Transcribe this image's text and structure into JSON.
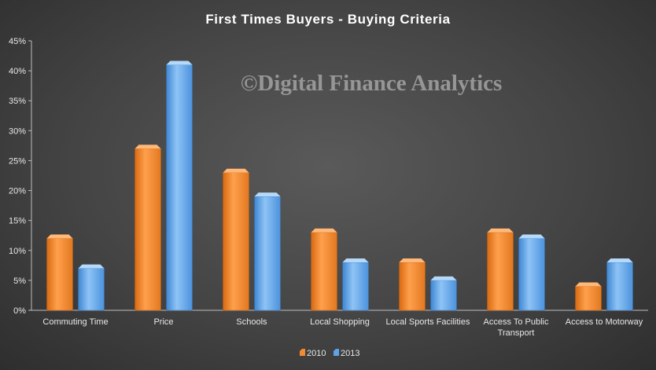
{
  "chart_data": {
    "type": "bar",
    "title": "First Times Buyers - Buying Criteria",
    "watermark": "©Digital Finance Analytics",
    "categories": [
      "Commuting Time",
      "Price",
      "Schools",
      "Local Shopping",
      "Local Sports Facilities",
      "Access To Public Transport",
      "Access to Motorway"
    ],
    "category_lines": [
      [
        "Commuting Time"
      ],
      [
        "Price"
      ],
      [
        "Schools"
      ],
      [
        "Local Shopping"
      ],
      [
        "Local Sports Facilities"
      ],
      [
        "Access To Public",
        "Transport"
      ],
      [
        "Access to Motorway"
      ]
    ],
    "series": [
      {
        "name": "2010",
        "values": [
          12,
          27,
          23,
          13,
          8,
          13,
          4
        ],
        "color": "#f28a30"
      },
      {
        "name": "2013",
        "values": [
          7,
          41,
          19,
          8,
          5,
          12,
          8
        ],
        "color": "#5fa2e6"
      }
    ],
    "ylim": [
      0,
      45
    ],
    "yticks": [
      0,
      5,
      10,
      15,
      20,
      25,
      30,
      35,
      40,
      45
    ],
    "ytick_labels": [
      "0%",
      "5%",
      "10%",
      "15%",
      "20%",
      "25%",
      "30%",
      "35%",
      "40%",
      "45%"
    ],
    "xlabel": "",
    "ylabel": "",
    "grid": false,
    "legend_position": "bottom"
  }
}
